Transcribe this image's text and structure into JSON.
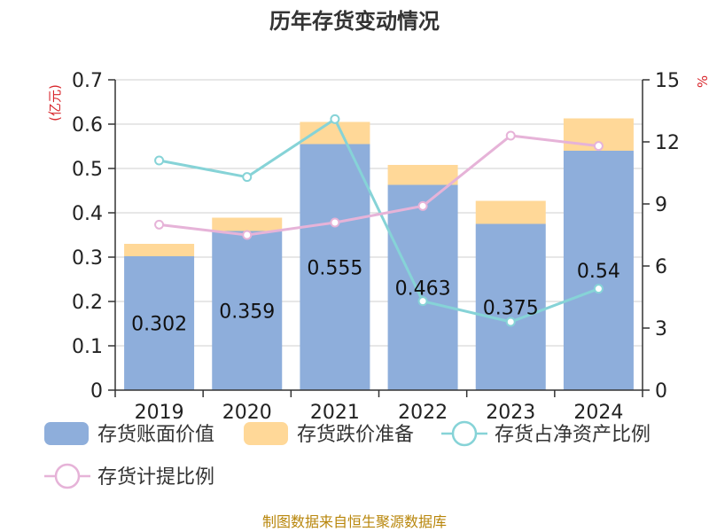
{
  "chart_data": {
    "type": "bar",
    "title": "历年存货变动情况",
    "categories": [
      "2019",
      "2020",
      "2021",
      "2022",
      "2023",
      "2024"
    ],
    "left_axis": {
      "unit": "(亿元)",
      "ylim": [
        0,
        0.7
      ],
      "ticks": [
        "0",
        "0.1",
        "0.2",
        "0.3",
        "0.4",
        "0.5",
        "0.6",
        "0.7"
      ]
    },
    "right_axis": {
      "unit": "%",
      "ylim": [
        0,
        15
      ],
      "ticks": [
        "0",
        "3",
        "6",
        "9",
        "12",
        "15"
      ]
    },
    "series": [
      {
        "name": "存货账面价值",
        "kind": "bar",
        "axis": "left",
        "color": "#8eaedb",
        "values": [
          0.302,
          0.359,
          0.555,
          0.463,
          0.375,
          0.54
        ],
        "labels": [
          "0.302",
          "0.359",
          "0.555",
          "0.463",
          "0.375",
          "0.54"
        ]
      },
      {
        "name": "存货跌价准备",
        "kind": "bar-stacked",
        "axis": "left",
        "color": "#ffd898",
        "values": [
          0.028,
          0.03,
          0.05,
          0.045,
          0.052,
          0.073
        ]
      },
      {
        "name": "存货占净资产比例",
        "kind": "line",
        "axis": "right",
        "color": "#86d3d7",
        "values": [
          11.1,
          10.3,
          13.1,
          4.3,
          3.3,
          4.9
        ]
      },
      {
        "name": "存货计提比例",
        "kind": "line",
        "axis": "right",
        "color": "#e6b3d8",
        "values": [
          8.0,
          7.5,
          8.1,
          8.9,
          12.3,
          11.8
        ]
      }
    ],
    "grid": true,
    "legend_position": "bottom"
  },
  "source_text": "制图数据来自恒生聚源数据库"
}
